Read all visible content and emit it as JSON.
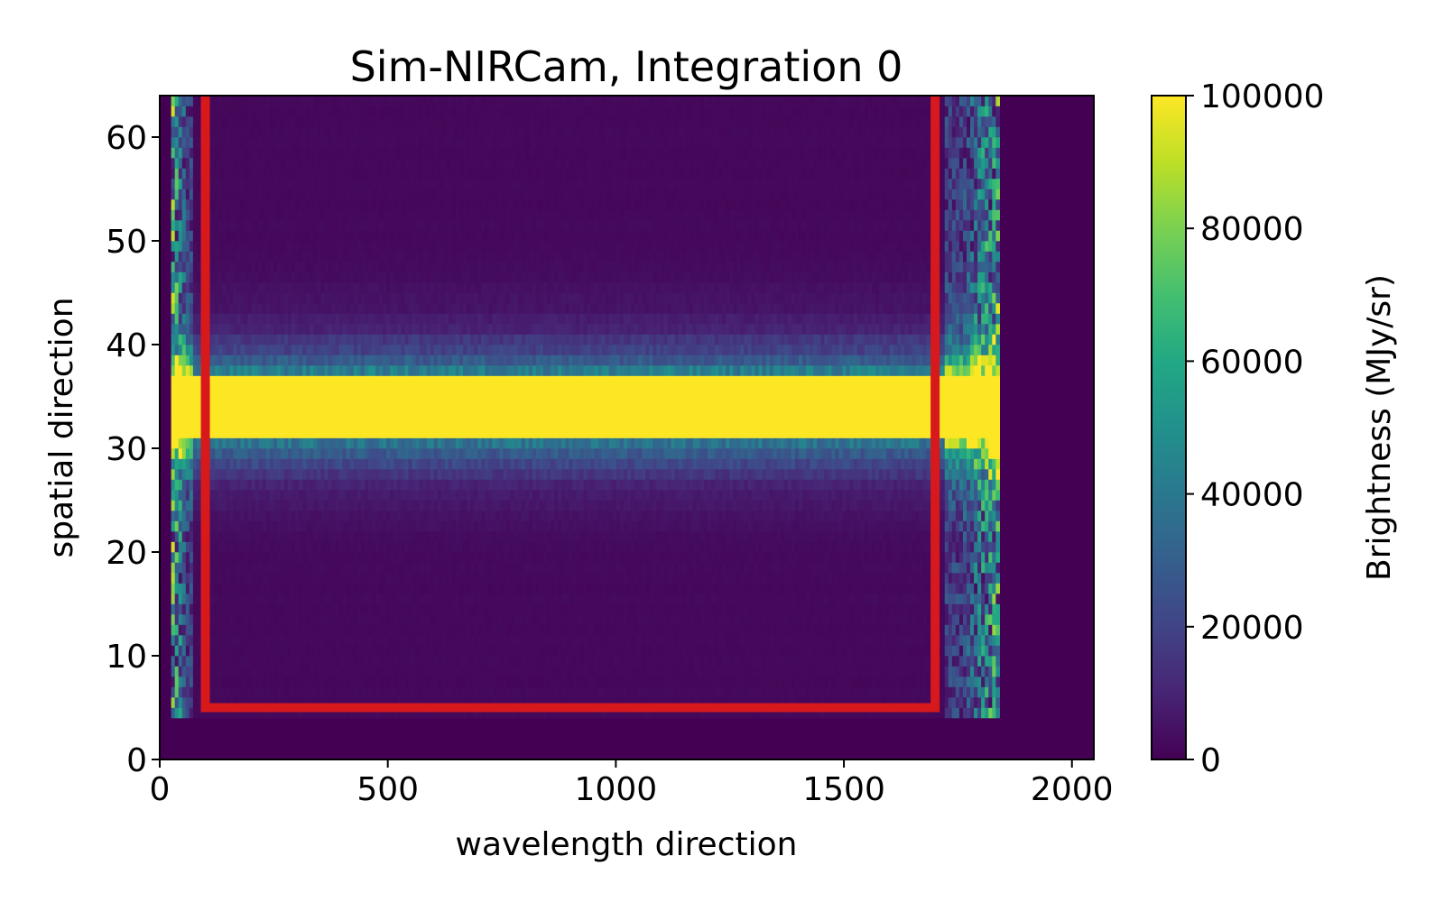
{
  "chart_data": {
    "type": "heatmap",
    "title": "Sim-NIRCam, Integration 0",
    "xlabel": "wavelength direction",
    "ylabel": "spatial direction",
    "xlim": [
      0,
      2048
    ],
    "ylim": [
      0,
      64
    ],
    "xticks": [
      0,
      500,
      1000,
      1500,
      2000
    ],
    "yticks": [
      0,
      10,
      20,
      30,
      40,
      50,
      60
    ],
    "colormap": "viridis",
    "colorbar": {
      "label": "Brightness (MJy/sr)",
      "range": [
        0,
        100000
      ],
      "ticks": [
        0,
        20000,
        40000,
        60000,
        80000,
        100000
      ]
    },
    "illuminated_region": {
      "x_range": [
        25,
        1835
      ],
      "y_range": [
        4,
        64
      ]
    },
    "trace": {
      "y_center": 34,
      "y_halfwidth": 3,
      "x_range": [
        25,
        1800
      ],
      "value": 100000
    },
    "extraction_box": {
      "x_range": [
        100,
        1700
      ],
      "y_range": [
        5,
        64
      ],
      "color": "#d7191c",
      "open_top": true
    },
    "grid": false
  },
  "colors": {
    "viridis_low": "#440154",
    "viridis_high": "#fde725",
    "box": "#d7191c"
  }
}
